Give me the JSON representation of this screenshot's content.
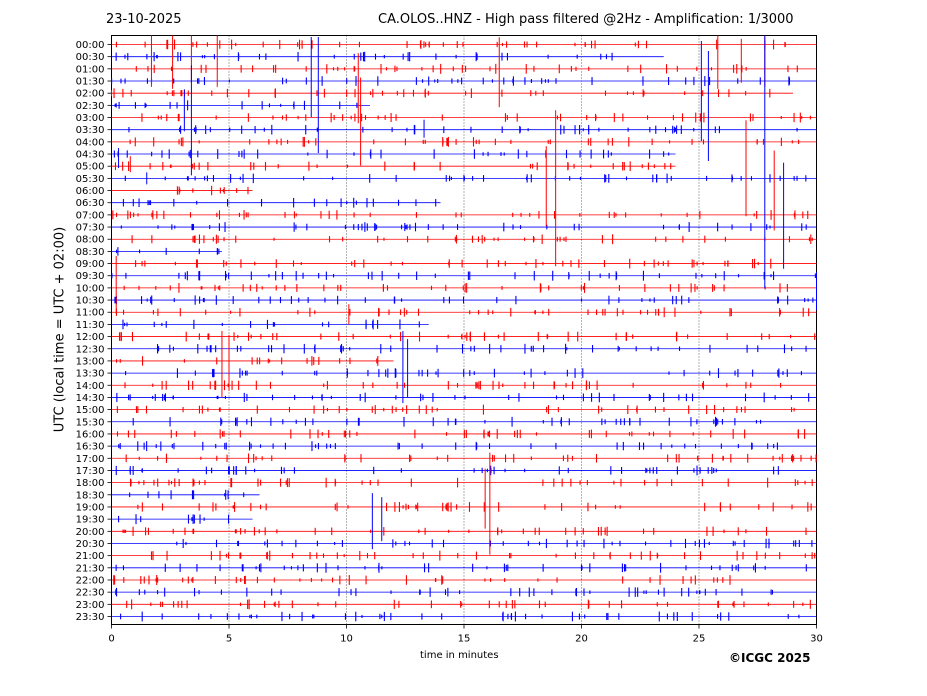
{
  "header": {
    "date": "23-10-2025",
    "title": "CA.OLOS..HNZ - High pass filtered @2Hz - Amplification: 1/3000"
  },
  "footer": {
    "copyright": "©ICGC 2025"
  },
  "colors": {
    "trace_odd": "#ff0000",
    "trace_even": "#0000ff",
    "grid": "#000000"
  },
  "chart_data": {
    "type": "line",
    "xlabel": "time in minutes",
    "ylabel": "UTC (local time = UTC + 02:00)",
    "xlim": [
      0,
      30
    ],
    "x_ticks": [
      0,
      5,
      10,
      15,
      20,
      25,
      30
    ],
    "grid_x": true,
    "rows": [
      "00:00",
      "00:30",
      "01:00",
      "01:30",
      "02:00",
      "02:30",
      "03:00",
      "03:30",
      "04:00",
      "04:30",
      "05:00",
      "05:30",
      "06:00",
      "06:30",
      "07:00",
      "07:30",
      "08:00",
      "08:30",
      "09:00",
      "09:30",
      "10:00",
      "10:30",
      "11:00",
      "11:30",
      "12:00",
      "12:30",
      "13:00",
      "13:30",
      "14:00",
      "14:30",
      "15:00",
      "15:30",
      "16:00",
      "16:30",
      "17:00",
      "17:30",
      "18:00",
      "18:30",
      "19:00",
      "19:30",
      "20:00",
      "20:30",
      "21:00",
      "21:30",
      "22:00",
      "22:30",
      "23:00",
      "23:30"
    ],
    "trace_end_minutes": [
      30,
      23.5,
      30,
      30,
      29,
      11,
      30,
      30,
      30,
      24,
      24,
      30,
      6,
      14,
      30,
      30,
      30,
      4.7,
      30,
      30,
      30,
      30,
      30,
      13.5,
      30,
      30,
      12,
      30,
      30,
      30,
      30,
      30,
      30,
      30,
      30,
      30,
      30,
      6.3,
      30,
      6,
      30,
      30,
      30,
      30,
      30,
      30,
      30,
      30
    ],
    "spikes": [
      {
        "row": "01:00",
        "minute": 1.7,
        "up": 34,
        "down": 18
      },
      {
        "row": "01:00",
        "minute": 2.6,
        "up": 34,
        "down": 20
      },
      {
        "row": "01:00",
        "minute": 3.4,
        "up": 34,
        "down": 14
      },
      {
        "row": "01:00",
        "minute": 4.5,
        "up": 34,
        "down": 18
      },
      {
        "row": "01:30",
        "minute": 8.5,
        "up": 44,
        "down": 36
      },
      {
        "row": "01:30",
        "minute": 8.8,
        "up": 44,
        "down": 72
      },
      {
        "row": "02:00",
        "minute": 10.5,
        "up": 40,
        "down": 30
      },
      {
        "row": "02:00",
        "minute": 16.5,
        "up": 56,
        "down": 14
      },
      {
        "row": "02:30",
        "minute": 3.1,
        "up": 16,
        "down": 26
      },
      {
        "row": "02:30",
        "minute": 3.4,
        "up": 40,
        "down": 70
      },
      {
        "row": "03:00",
        "minute": 10.6,
        "up": 40,
        "down": 48
      },
      {
        "row": "01:30",
        "minute": 25.1,
        "up": 40,
        "down": 60
      },
      {
        "row": "01:30",
        "minute": 25.4,
        "up": 30,
        "down": 80
      },
      {
        "row": "01:00",
        "minute": 25.8,
        "up": 34,
        "down": 20
      },
      {
        "row": "01:00",
        "minute": 26.8,
        "up": 30,
        "down": 14
      },
      {
        "row": "01:00",
        "minute": 27.8,
        "up": 32,
        "down": 18
      },
      {
        "row": "05:00",
        "minute": 27.0,
        "up": 46,
        "down": 50
      },
      {
        "row": "05:30",
        "minute": 27.8,
        "up": 160,
        "down": 110
      },
      {
        "row": "06:00",
        "minute": 28.2,
        "up": 40,
        "down": 40
      },
      {
        "row": "06:30",
        "minute": 28.6,
        "up": 40,
        "down": 66
      },
      {
        "row": "05:00",
        "minute": 18.5,
        "up": 20,
        "down": 60
      },
      {
        "row": "05:00",
        "minute": 18.9,
        "up": 56,
        "down": 100
      },
      {
        "row": "03:30",
        "minute": 13.3,
        "up": 10,
        "down": 8
      },
      {
        "row": "10:00",
        "minute": 0.2,
        "up": 32,
        "down": 26
      },
      {
        "row": "10:30",
        "minute": 30.0,
        "up": 28,
        "down": 10
      },
      {
        "row": "11:00",
        "minute": 10.1,
        "up": 8,
        "down": 12
      },
      {
        "row": "13:00",
        "minute": 4.7,
        "up": 30,
        "down": 36
      },
      {
        "row": "13:00",
        "minute": 5.0,
        "up": 26,
        "down": 30
      },
      {
        "row": "13:30",
        "minute": 12.4,
        "up": 42,
        "down": 30
      },
      {
        "row": "13:30",
        "minute": 12.6,
        "up": 34,
        "down": 24
      },
      {
        "row": "18:00",
        "minute": 15.9,
        "up": 14,
        "down": 46
      },
      {
        "row": "18:00",
        "minute": 16.1,
        "up": 30,
        "down": 72
      },
      {
        "row": "19:30",
        "minute": 11.1,
        "up": 26,
        "down": 30
      },
      {
        "row": "19:30",
        "minute": 11.5,
        "up": 22,
        "down": 22
      },
      {
        "row": "04:30",
        "minute": 0.3,
        "up": 6,
        "down": 14
      },
      {
        "row": "05:00",
        "minute": 0.8,
        "up": 10,
        "down": 6
      },
      {
        "row": "05:30",
        "minute": 1.5,
        "up": 6,
        "down": 6
      }
    ]
  }
}
